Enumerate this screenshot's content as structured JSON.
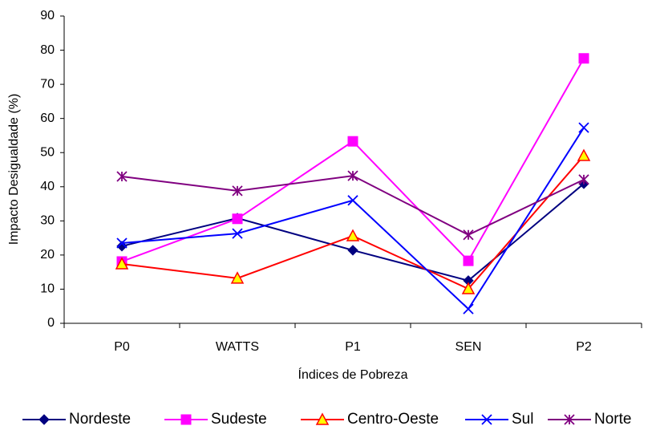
{
  "chart_data": {
    "type": "line",
    "x_label": "Índices de Pobreza",
    "y_label": "Impacto Desigualdade (%)",
    "categories": [
      "P0",
      "WATTS",
      "P1",
      "SEN",
      "P2"
    ],
    "ylim": [
      0,
      90
    ],
    "yticks": [
      0,
      10,
      20,
      30,
      40,
      50,
      60,
      70,
      80,
      90
    ],
    "legend": "bottom",
    "series": [
      {
        "name": "Nordeste",
        "color": "#000080",
        "marker": "diamond",
        "values": [
          22.6,
          30.8,
          21.4,
          12.5,
          40.9
        ]
      },
      {
        "name": "Sudeste",
        "color": "#ff00ff",
        "marker": "square",
        "values": [
          18.1,
          30.6,
          53.3,
          18.3,
          77.6
        ]
      },
      {
        "name": "Centro-Oeste",
        "color": "#ff0000",
        "marker": "triangle",
        "values": [
          17.4,
          13.2,
          25.6,
          10.1,
          49.1
        ]
      },
      {
        "name": "Sul",
        "color": "#0000ff",
        "marker": "x",
        "values": [
          23.5,
          26.3,
          36.0,
          4.2,
          57.3
        ]
      },
      {
        "name": "Norte",
        "color": "#800080",
        "marker": "asterisk",
        "values": [
          43.0,
          38.8,
          43.2,
          25.9,
          42.1
        ]
      }
    ]
  }
}
